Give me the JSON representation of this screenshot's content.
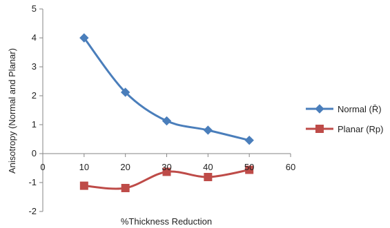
{
  "chart_data": {
    "type": "line",
    "title": "",
    "xlabel": "%Thickness Reduction",
    "ylabel": "Anisotropy (Normal and Planar)",
    "xlim": [
      0,
      60
    ],
    "ylim": [
      -2,
      5
    ],
    "x_ticks": [
      "0",
      "10",
      "20",
      "30",
      "40",
      "50",
      "60"
    ],
    "y_ticks": [
      "-2",
      "-1",
      "0",
      "1",
      "2",
      "3",
      "4",
      "5"
    ],
    "grid": false,
    "smooth": true,
    "legend_position": "right",
    "series": [
      {
        "name": "Normal (R̄)",
        "color": "#4a7ebb",
        "marker": "diamond",
        "x": [
          10,
          20,
          30,
          40,
          50
        ],
        "y": [
          4.0,
          2.12,
          1.13,
          0.81,
          0.46
        ]
      },
      {
        "name": "Planar (Rp)",
        "color": "#be4b48",
        "marker": "square",
        "x": [
          10,
          20,
          30,
          40,
          50
        ],
        "y": [
          -1.11,
          -1.19,
          -0.63,
          -0.81,
          -0.56
        ]
      }
    ]
  }
}
